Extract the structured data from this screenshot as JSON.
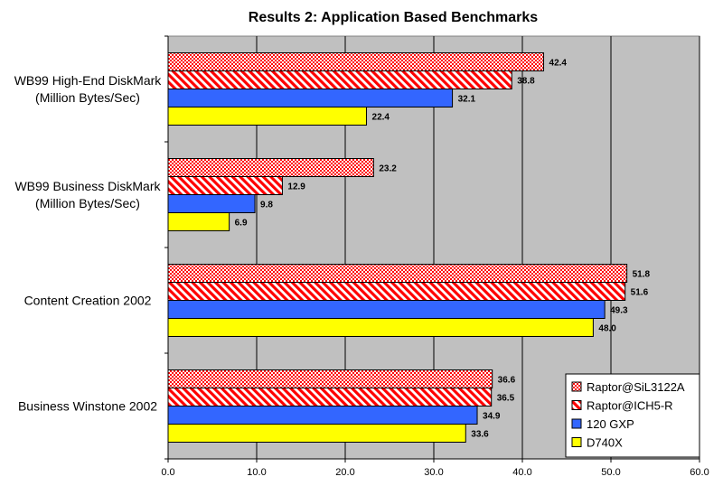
{
  "chart_data": {
    "type": "bar",
    "orientation": "horizontal",
    "title": "Results 2: Application Based Benchmarks",
    "xlabel": "",
    "ylabel": "",
    "xlim": [
      0,
      60
    ],
    "ticks": [
      "0.0",
      "10.0",
      "20.0",
      "30.0",
      "40.0",
      "50.0",
      "60.0"
    ],
    "tick_values": [
      0,
      10,
      20,
      30,
      40,
      50,
      60
    ],
    "grid": true,
    "legend_position": "bottom-right",
    "categories": [
      {
        "lines": [
          "WB99 High-End DiskMark",
          "(Million Bytes/Sec)"
        ]
      },
      {
        "lines": [
          "WB99 Business DiskMark",
          "(Million Bytes/Sec)"
        ]
      },
      {
        "lines": [
          "Content Creation 2002"
        ]
      },
      {
        "lines": [
          "Business Winstone 2002"
        ]
      }
    ],
    "series": [
      {
        "name": "Raptor@SiL3122A",
        "color": "#ff0000",
        "pattern": "checker",
        "values": [
          42.4,
          23.2,
          51.8,
          36.6
        ],
        "labels": [
          "42.4",
          "23.2",
          "51.8",
          "36.6"
        ]
      },
      {
        "name": "Raptor@ICH5-R",
        "color": "#ff0000",
        "pattern": "diagonal",
        "values": [
          38.8,
          12.9,
          51.6,
          36.5
        ],
        "labels": [
          "38.8",
          "12.9",
          "51.6",
          "36.5"
        ]
      },
      {
        "name": "120 GXP",
        "color": "#3366ff",
        "pattern": "solid",
        "values": [
          32.1,
          9.8,
          49.3,
          34.9
        ],
        "labels": [
          "32.1",
          "9.8",
          "49.3",
          "34.9"
        ]
      },
      {
        "name": "D740X",
        "color": "#ffff00",
        "pattern": "solid",
        "values": [
          22.4,
          6.9,
          48.0,
          33.6
        ],
        "labels": [
          "22.4",
          "6.9",
          "48.0",
          "33.6"
        ]
      }
    ],
    "colors": {
      "plot_background": "#c0c0c0",
      "gridline": "#000000",
      "bar_outline": "#000000"
    }
  }
}
